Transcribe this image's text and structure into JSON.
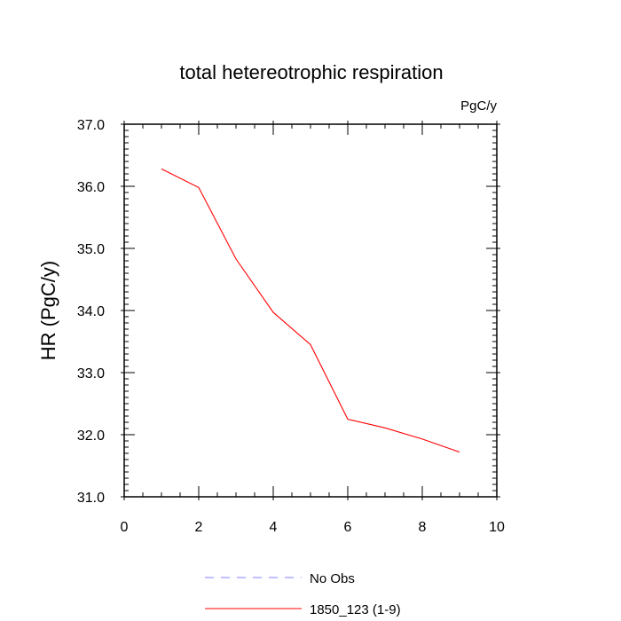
{
  "chart_data": {
    "type": "line",
    "title": "total hetereotrophic respiration",
    "units": "PgC/y",
    "xlabel": "",
    "ylabel": "HR  (PgC/y)",
    "xlim": [
      0,
      10
    ],
    "ylim": [
      31.0,
      37.0
    ],
    "x_ticks": [
      "0",
      "2",
      "4",
      "6",
      "8",
      "10"
    ],
    "y_ticks": [
      "31.0",
      "32.0",
      "33.0",
      "34.0",
      "35.0",
      "36.0",
      "37.0"
    ],
    "grid": false,
    "legend_placement": "bottom",
    "series": [
      {
        "name": "No Obs",
        "color": "#8080ff",
        "style": "dashed",
        "x": [],
        "y": []
      },
      {
        "name": "1850_123 (1-9)",
        "color": "#ff0000",
        "style": "solid",
        "x": [
          1,
          2,
          3,
          4,
          5,
          6,
          7,
          8,
          9
        ],
        "y": [
          36.28,
          35.98,
          34.83,
          33.97,
          33.45,
          32.25,
          32.11,
          31.93,
          31.72
        ]
      }
    ]
  }
}
